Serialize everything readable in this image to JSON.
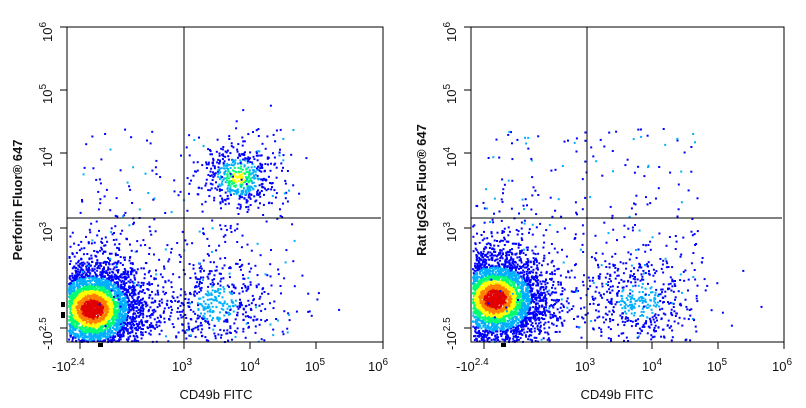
{
  "chart_data": [
    {
      "type": "scatter",
      "plot_style": "flow-cytometry density dot plot (pseudocolor)",
      "xlabel": "CD49b FITC",
      "ylabel": "Perforin  Fluor® 647",
      "x_scale": "biexponential (log decades)",
      "y_scale": "biexponential (log decades)",
      "x_ticks": [
        {
          "base": "-10",
          "exp": "2.4",
          "value": -250
        },
        {
          "base": "10",
          "exp": "3",
          "value": 1000
        },
        {
          "base": "10",
          "exp": "4",
          "value": 10000
        },
        {
          "base": "10",
          "exp": "5",
          "value": 100000
        },
        {
          "base": "10",
          "exp": "6",
          "value": 1000000
        }
      ],
      "y_ticks": [
        {
          "base": "-10",
          "exp": "2.5",
          "value": -316
        },
        {
          "base": "10",
          "exp": "3",
          "value": 1000
        },
        {
          "base": "10",
          "exp": "4",
          "value": 10000
        },
        {
          "base": "10",
          "exp": "5",
          "value": 100000
        },
        {
          "base": "10",
          "exp": "6",
          "value": 1000000
        }
      ],
      "quadrant_gate": {
        "x": 1000,
        "y": 1400
      },
      "populations": [
        {
          "center_x": 110,
          "center_y": 200,
          "spread": "large",
          "density": "high"
        },
        {
          "center_x": 6500,
          "center_y": 6000,
          "spread": "small",
          "density": "medium"
        },
        {
          "center_x": 3000,
          "center_y": 250,
          "spread": "medium",
          "density": "low"
        }
      ],
      "colors": [
        "#0000ff",
        "#00b0ff",
        "#00ff70",
        "#ffff00",
        "#ff8000",
        "#e00000"
      ]
    },
    {
      "type": "scatter",
      "plot_style": "flow-cytometry density dot plot (pseudocolor)",
      "xlabel": "CD49b FITC",
      "ylabel": "Rat IgG2a Fluor® 647",
      "x_scale": "biexponential (log decades)",
      "y_scale": "biexponential (log decades)",
      "x_ticks": [
        {
          "base": "-10",
          "exp": "2.4",
          "value": -250
        },
        {
          "base": "10",
          "exp": "3",
          "value": 1000
        },
        {
          "base": "10",
          "exp": "4",
          "value": 10000
        },
        {
          "base": "10",
          "exp": "5",
          "value": 100000
        },
        {
          "base": "10",
          "exp": "6",
          "value": 1000000
        }
      ],
      "y_ticks": [
        {
          "base": "-10",
          "exp": "2.5",
          "value": -316
        },
        {
          "base": "10",
          "exp": "3",
          "value": 1000
        },
        {
          "base": "10",
          "exp": "4",
          "value": 10000
        },
        {
          "base": "10",
          "exp": "5",
          "value": 100000
        },
        {
          "base": "10",
          "exp": "6",
          "value": 1000000
        }
      ],
      "quadrant_gate": {
        "x": 1000,
        "y": 1400
      },
      "populations": [
        {
          "center_x": 100,
          "center_y": 300,
          "spread": "large",
          "density": "high"
        },
        {
          "center_x": 6000,
          "center_y": 280,
          "spread": "medium",
          "density": "low"
        }
      ],
      "colors": [
        "#0000ff",
        "#00b0ff",
        "#00ff70",
        "#ffff00",
        "#ff8000",
        "#e00000"
      ]
    }
  ]
}
